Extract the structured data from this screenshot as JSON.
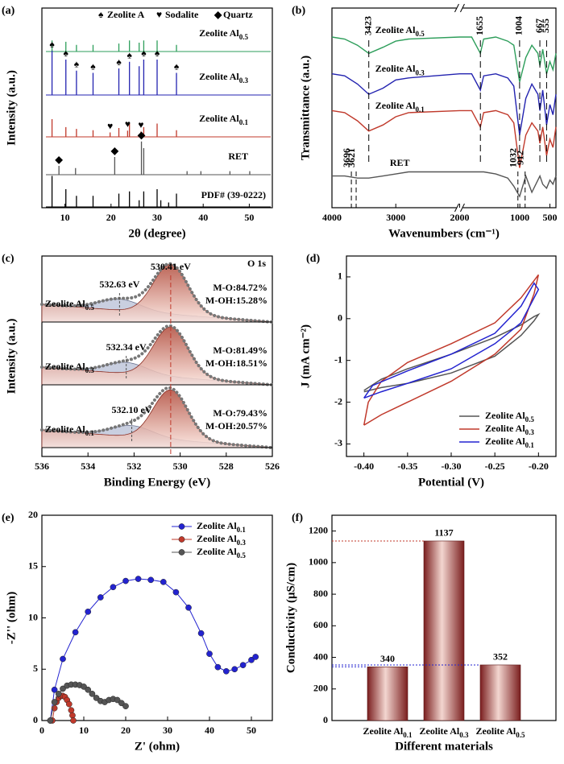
{
  "chart_data": [
    {
      "panel": "(a)",
      "type": "stick",
      "x_label": "2θ (degree)",
      "y_label": "Intensity (a.u.)",
      "xlim": [
        5,
        55
      ],
      "xticks": [
        10,
        20,
        30,
        40,
        50
      ],
      "marker_legend": [
        {
          "symbol": "♠",
          "label": "Zeolite A"
        },
        {
          "symbol": "♥",
          "label": "Sodalite"
        },
        {
          "symbol": "◆",
          "label": "Quartz"
        }
      ],
      "series": [
        {
          "name": "Zeolite Al0.5",
          "color": "#2e9e5b",
          "x": [
            7.2,
            10.2,
            12.5,
            16.1,
            21.7,
            24.0,
            26.1,
            27.1,
            30.0,
            34.2
          ],
          "values": [
            25,
            22,
            15,
            15,
            18,
            25,
            20,
            25,
            25,
            15
          ]
        },
        {
          "name": "Zeolite Al0.3",
          "color": "#2323b0",
          "x": [
            7.2,
            10.2,
            12.5,
            16.1,
            21.7,
            24.0,
            26.1,
            27.1,
            30.0,
            34.2
          ],
          "values": [
            100,
            80,
            55,
            50,
            60,
            75,
            65,
            80,
            80,
            50
          ],
          "marker_symbol": "♠",
          "marker_x": [
            7.2,
            10.2,
            12.5,
            16.1,
            21.7,
            24.0,
            27.1,
            30.0,
            34.2
          ]
        },
        {
          "name": "Zeolite Al0.1",
          "color": "#c0392b",
          "x": [
            7.2,
            10.2,
            12.5,
            16.1,
            19.8,
            21.7,
            23.6,
            24.0,
            26.5,
            27.1,
            30.0,
            34.2
          ],
          "values": [
            40,
            22,
            18,
            15,
            10,
            20,
            14,
            30,
            12,
            22,
            30,
            15
          ],
          "marker_symbol": "♥",
          "marker_x": [
            19.8,
            23.6,
            26.5
          ]
        },
        {
          "name": "RET",
          "color": "#555555",
          "x": [
            8.7,
            12.3,
            20.8,
            26.6,
            27.1,
            36.5,
            39.5,
            45.8,
            50.1
          ],
          "values": [
            20,
            15,
            40,
            75,
            60,
            8,
            8,
            8,
            8
          ],
          "marker_symbol": "◆",
          "marker_x": [
            8.7,
            20.8,
            26.6
          ]
        },
        {
          "name": "PDF# (39-0222)",
          "color": "#000000",
          "x": [
            7.2,
            10.2,
            12.5,
            16.1,
            21.7,
            24.0,
            26.1,
            27.1,
            30.0,
            30.8,
            32.5,
            34.2
          ],
          "values": [
            70,
            40,
            25,
            25,
            30,
            35,
            15,
            35,
            40,
            15,
            10,
            30
          ]
        }
      ]
    },
    {
      "panel": "(b)",
      "type": "spectrum",
      "x_label": "Wavenumbers (cm⁻¹)",
      "y_label": "Transmittance (a.u.)",
      "xlim": [
        4000,
        400
      ],
      "xbreak": 2000,
      "xticks": [
        4000,
        3000,
        2000,
        1000,
        500
      ],
      "x": [
        4000,
        3800,
        3600,
        3423,
        3200,
        3000,
        2800,
        2000,
        1800,
        1655,
        1600,
        1400,
        1200,
        1100,
        1004,
        900,
        800,
        700,
        667,
        620,
        555,
        500,
        450,
        400
      ],
      "series": [
        {
          "name": "Zeolite Al0.5",
          "color": "#2e9e5b",
          "values": [
            88,
            87,
            84,
            80,
            83,
            86,
            87,
            88,
            88,
            80,
            87,
            88,
            86,
            84,
            66,
            78,
            84,
            80,
            74,
            82,
            70,
            76,
            72,
            80
          ]
        },
        {
          "name": "Zeolite Al0.3",
          "color": "#2323b0",
          "values": [
            70,
            69,
            65,
            60,
            63,
            67,
            68,
            70,
            70,
            62,
            69,
            70,
            68,
            64,
            40,
            58,
            65,
            60,
            52,
            62,
            45,
            55,
            50,
            60
          ]
        },
        {
          "name": "Zeolite Al0.1",
          "color": "#c0392b",
          "values": [
            52,
            51,
            47,
            42,
            45,
            49,
            51,
            52,
            52,
            44,
            51,
            52,
            50,
            46,
            24,
            40,
            46,
            42,
            36,
            44,
            30,
            38,
            34,
            44
          ]
        },
        {
          "name": "RET",
          "color": "#555555",
          "values": [
            20,
            20,
            19,
            19,
            20,
            21,
            22,
            22,
            22,
            22,
            22,
            21,
            19,
            15,
            10,
            20,
            12,
            18,
            20,
            16,
            14,
            18,
            16,
            20
          ]
        }
      ],
      "peaks_upper": [
        3423,
        1655,
        1004,
        667,
        555
      ],
      "peaks_lower": [
        3696,
        3621,
        1032,
        912
      ]
    },
    {
      "panel": "(c)",
      "type": "xps",
      "x_label": "Binding Energy (eV)",
      "y_label": "Intensity (a.u.)",
      "title": "O 1s",
      "xlim": [
        536,
        526
      ],
      "xticks": [
        536,
        534,
        532,
        530,
        528,
        526
      ],
      "mo_peak": {
        "value": 530.41,
        "label": "530.41 eV"
      },
      "series": [
        {
          "name": "Zeolite Al0.5",
          "color": "#2323b0",
          "moh_peak": {
            "value": 532.63,
            "label": "532.63 eV"
          },
          "mo_text": "M-O:84.72%",
          "moh_text": "M-OH:15.28%"
        },
        {
          "name": "Zeolite Al0.3",
          "color": "#c0392b",
          "moh_peak": {
            "value": 532.34,
            "label": "532.34 eV"
          },
          "mo_text": "M-O:81.49%",
          "moh_text": "M-OH:18.51%"
        },
        {
          "name": "Zeolite Al0.1",
          "color": "#000000",
          "moh_peak": {
            "value": 532.1,
            "label": "532.10 eV"
          },
          "mo_text": "M-O:79.43%",
          "moh_text": "M-OH:20.57%"
        }
      ]
    },
    {
      "panel": "(d)",
      "type": "line",
      "x_label": "Potential (V)",
      "y_label": "J (mA cm⁻²)",
      "xlim": [
        -0.42,
        -0.18
      ],
      "xticks": [
        {
          "value": -0.4,
          "label": "-0.40"
        },
        {
          "value": -0.35,
          "label": "-0.35"
        },
        {
          "value": -0.3,
          "label": "-0.30"
        },
        {
          "value": -0.25,
          "label": "-0.25"
        },
        {
          "value": -0.2,
          "label": "-0.20"
        }
      ],
      "ylim": [
        -3.3,
        1.5
      ],
      "yticks": [
        -3,
        -2,
        -1,
        0,
        1
      ],
      "series": [
        {
          "name": "Zeolite Al0.5",
          "color": "#555555",
          "x": [
            -0.4,
            -0.38,
            -0.35,
            -0.3,
            -0.25,
            -0.22,
            -0.205,
            -0.2,
            -0.205,
            -0.22,
            -0.25,
            -0.3,
            -0.35,
            -0.38,
            -0.4
          ],
          "values": [
            -1.72,
            -1.45,
            -1.2,
            -0.85,
            -0.45,
            -0.15,
            0.05,
            0.1,
            -0.05,
            -0.4,
            -0.9,
            -1.3,
            -1.55,
            -1.65,
            -1.75
          ]
        },
        {
          "name": "Zeolite Al0.3",
          "color": "#c0392b",
          "x": [
            -0.4,
            -0.395,
            -0.38,
            -0.35,
            -0.3,
            -0.25,
            -0.22,
            -0.2,
            -0.205,
            -0.22,
            -0.25,
            -0.3,
            -0.35,
            -0.38,
            -0.4
          ],
          "values": [
            -2.55,
            -2.0,
            -1.5,
            -1.05,
            -0.6,
            -0.1,
            0.5,
            1.05,
            0.6,
            -0.25,
            -0.85,
            -1.5,
            -2.0,
            -2.3,
            -2.55
          ]
        },
        {
          "name": "Zeolite Al0.1",
          "color": "#2323d0",
          "x": [
            -0.4,
            -0.39,
            -0.35,
            -0.3,
            -0.25,
            -0.22,
            -0.205,
            -0.2,
            -0.22,
            -0.25,
            -0.3,
            -0.35,
            -0.38,
            -0.4
          ],
          "values": [
            -1.9,
            -1.6,
            -1.25,
            -0.85,
            -0.35,
            0.3,
            0.85,
            0.7,
            -0.1,
            -0.6,
            -1.2,
            -1.55,
            -1.75,
            -1.9
          ]
        }
      ]
    },
    {
      "panel": "(e)",
      "type": "scatter",
      "x_label": "Z' (ohm)",
      "y_label": "-Z'' (ohm)",
      "xlim": [
        0,
        55
      ],
      "xticks": [
        0,
        10,
        20,
        30,
        40,
        50
      ],
      "ylim": [
        0,
        20
      ],
      "yticks": [
        0,
        5,
        10,
        15,
        20
      ],
      "series": [
        {
          "name": "Zeolite Al0.1",
          "color": "#2323d0",
          "x": [
            2,
            3,
            5,
            8,
            11,
            14,
            17,
            20,
            23,
            26,
            29,
            32,
            35,
            38,
            40,
            42,
            44,
            46,
            48,
            50,
            51
          ],
          "values": [
            0,
            3,
            6,
            8.6,
            10.6,
            12,
            13,
            13.6,
            13.8,
            13.7,
            13.5,
            12.5,
            11,
            8.5,
            6.5,
            5.2,
            4.8,
            5,
            5.4,
            5.9,
            6.2
          ]
        },
        {
          "name": "Zeolite Al0.3",
          "color": "#c0392b",
          "x": [
            2.5,
            3,
            3.5,
            4,
            4.5,
            5,
            5.5,
            6,
            6.5,
            7,
            7.3,
            7.5
          ],
          "values": [
            0,
            1.2,
            1.8,
            2.2,
            2.4,
            2.4,
            2.3,
            2,
            1.6,
            1.0,
            0.5,
            0
          ]
        },
        {
          "name": "Zeolite Al0.5",
          "color": "#555555",
          "x": [
            2,
            3,
            4,
            5,
            6,
            7,
            8,
            9,
            10,
            11,
            12,
            13,
            14,
            15,
            16,
            17,
            18,
            19,
            20
          ],
          "values": [
            0,
            1.8,
            2.6,
            3.1,
            3.4,
            3.5,
            3.5,
            3.45,
            3.3,
            3.0,
            2.6,
            2.2,
            1.9,
            1.8,
            2.0,
            2.1,
            2.0,
            1.7,
            1.4
          ]
        }
      ]
    },
    {
      "panel": "(f)",
      "type": "bar",
      "x_label": "Different materials",
      "y_label": "Conductivity (μS/cm)",
      "categories": [
        "Zeolite Al0.1",
        "Zeolite Al0.3",
        "Zeolite Al0.5"
      ],
      "values": [
        340,
        1137,
        352
      ],
      "label_colors": [
        "#000000",
        "#c0392b",
        "#2323d0"
      ],
      "ref_line_colors": [
        "#2323d0",
        "#c0392b",
        "#2323d0"
      ],
      "ylim": [
        0,
        1300
      ],
      "yticks": [
        0,
        200,
        400,
        600,
        800,
        1000,
        1200
      ]
    }
  ]
}
